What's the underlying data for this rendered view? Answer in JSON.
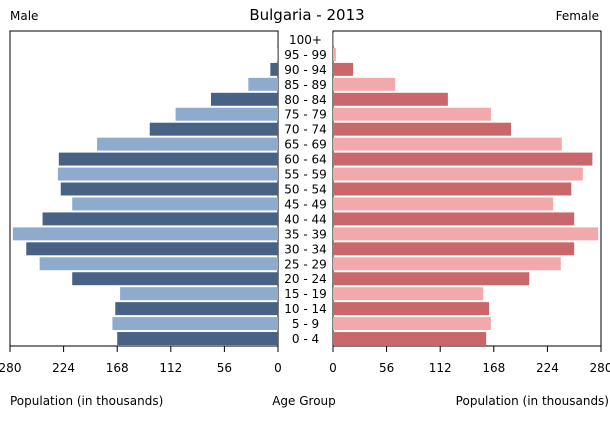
{
  "chart_data": {
    "type": "bar",
    "title": "Bulgaria - 2013",
    "left_label": "Male",
    "right_label": "Female",
    "xlabel_left": "Population (in thousands)",
    "xlabel_center": "Age Group",
    "xlabel_right": "Population (in thousands)",
    "xlim": [
      0,
      280
    ],
    "x_ticks_male": [
      "280",
      "224",
      "168",
      "112",
      "56",
      "0"
    ],
    "x_ticks_female": [
      "0",
      "56",
      "112",
      "168",
      "224",
      "280"
    ],
    "categories": [
      "100+",
      "95 - 99",
      "90 - 94",
      "85 - 89",
      "80 - 84",
      "75 - 79",
      "70 - 74",
      "65 - 69",
      "60 - 64",
      "55 - 59",
      "50 - 54",
      "45 - 49",
      "40 - 44",
      "35 - 39",
      "30 - 34",
      "25 - 29",
      "20 - 24",
      "15 - 19",
      "10 - 14",
      "5 - 9",
      "0 - 4"
    ],
    "series": [
      {
        "name": "Male",
        "values": [
          0.2,
          1,
          8,
          31,
          70,
          107,
          134,
          189,
          229,
          230,
          227,
          215,
          246,
          277,
          263,
          249,
          215,
          165,
          170,
          173,
          168
        ]
      },
      {
        "name": "Female",
        "values": [
          0.4,
          3,
          21,
          65,
          120,
          165,
          186,
          239,
          271,
          261,
          249,
          230,
          252,
          277,
          252,
          238,
          205,
          157,
          163,
          165,
          160
        ]
      }
    ],
    "colors": {
      "male_dark": "#476285",
      "male_light": "#8eabce",
      "female_dark": "#c9676a",
      "female_light": "#f2a9ab"
    },
    "grid": false
  }
}
